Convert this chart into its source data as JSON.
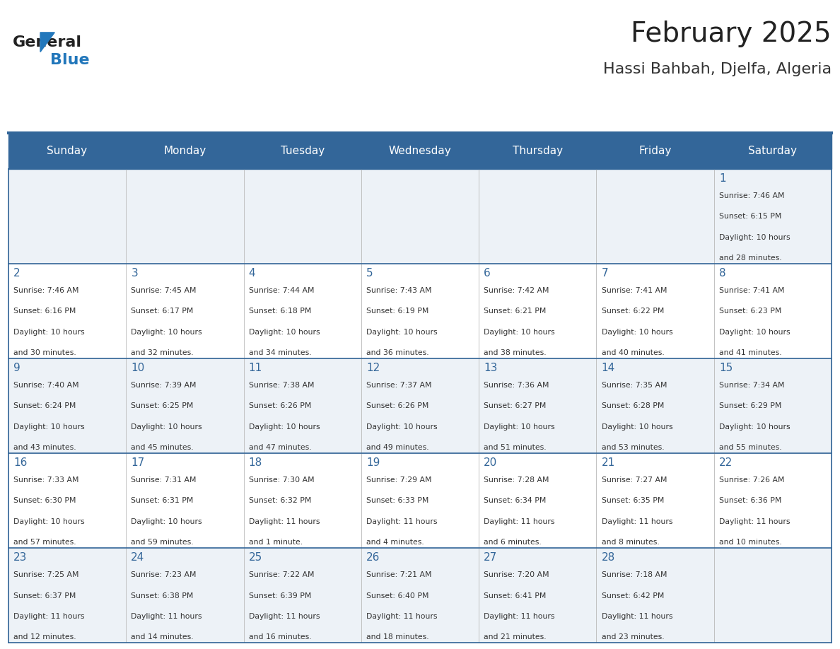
{
  "title": "February 2025",
  "subtitle": "Hassi Bahbah, Djelfa, Algeria",
  "days_of_week": [
    "Sunday",
    "Monday",
    "Tuesday",
    "Wednesday",
    "Thursday",
    "Friday",
    "Saturday"
  ],
  "header_bg": "#336699",
  "header_text_color": "#ffffff",
  "cell_bg_light": "#edf2f7",
  "cell_bg_white": "#ffffff",
  "border_color": "#336699",
  "text_color": "#333333",
  "day_num_color": "#336699",
  "calendar_data": [
    [
      null,
      null,
      null,
      null,
      null,
      null,
      {
        "day": 1,
        "sunrise": "7:46 AM",
        "sunset": "6:15 PM",
        "daylight": "10 hours\nand 28 minutes."
      }
    ],
    [
      {
        "day": 2,
        "sunrise": "7:46 AM",
        "sunset": "6:16 PM",
        "daylight": "10 hours\nand 30 minutes."
      },
      {
        "day": 3,
        "sunrise": "7:45 AM",
        "sunset": "6:17 PM",
        "daylight": "10 hours\nand 32 minutes."
      },
      {
        "day": 4,
        "sunrise": "7:44 AM",
        "sunset": "6:18 PM",
        "daylight": "10 hours\nand 34 minutes."
      },
      {
        "day": 5,
        "sunrise": "7:43 AM",
        "sunset": "6:19 PM",
        "daylight": "10 hours\nand 36 minutes."
      },
      {
        "day": 6,
        "sunrise": "7:42 AM",
        "sunset": "6:21 PM",
        "daylight": "10 hours\nand 38 minutes."
      },
      {
        "day": 7,
        "sunrise": "7:41 AM",
        "sunset": "6:22 PM",
        "daylight": "10 hours\nand 40 minutes."
      },
      {
        "day": 8,
        "sunrise": "7:41 AM",
        "sunset": "6:23 PM",
        "daylight": "10 hours\nand 41 minutes."
      }
    ],
    [
      {
        "day": 9,
        "sunrise": "7:40 AM",
        "sunset": "6:24 PM",
        "daylight": "10 hours\nand 43 minutes."
      },
      {
        "day": 10,
        "sunrise": "7:39 AM",
        "sunset": "6:25 PM",
        "daylight": "10 hours\nand 45 minutes."
      },
      {
        "day": 11,
        "sunrise": "7:38 AM",
        "sunset": "6:26 PM",
        "daylight": "10 hours\nand 47 minutes."
      },
      {
        "day": 12,
        "sunrise": "7:37 AM",
        "sunset": "6:26 PM",
        "daylight": "10 hours\nand 49 minutes."
      },
      {
        "day": 13,
        "sunrise": "7:36 AM",
        "sunset": "6:27 PM",
        "daylight": "10 hours\nand 51 minutes."
      },
      {
        "day": 14,
        "sunrise": "7:35 AM",
        "sunset": "6:28 PM",
        "daylight": "10 hours\nand 53 minutes."
      },
      {
        "day": 15,
        "sunrise": "7:34 AM",
        "sunset": "6:29 PM",
        "daylight": "10 hours\nand 55 minutes."
      }
    ],
    [
      {
        "day": 16,
        "sunrise": "7:33 AM",
        "sunset": "6:30 PM",
        "daylight": "10 hours\nand 57 minutes."
      },
      {
        "day": 17,
        "sunrise": "7:31 AM",
        "sunset": "6:31 PM",
        "daylight": "10 hours\nand 59 minutes."
      },
      {
        "day": 18,
        "sunrise": "7:30 AM",
        "sunset": "6:32 PM",
        "daylight": "11 hours\nand 1 minute."
      },
      {
        "day": 19,
        "sunrise": "7:29 AM",
        "sunset": "6:33 PM",
        "daylight": "11 hours\nand 4 minutes."
      },
      {
        "day": 20,
        "sunrise": "7:28 AM",
        "sunset": "6:34 PM",
        "daylight": "11 hours\nand 6 minutes."
      },
      {
        "day": 21,
        "sunrise": "7:27 AM",
        "sunset": "6:35 PM",
        "daylight": "11 hours\nand 8 minutes."
      },
      {
        "day": 22,
        "sunrise": "7:26 AM",
        "sunset": "6:36 PM",
        "daylight": "11 hours\nand 10 minutes."
      }
    ],
    [
      {
        "day": 23,
        "sunrise": "7:25 AM",
        "sunset": "6:37 PM",
        "daylight": "11 hours\nand 12 minutes."
      },
      {
        "day": 24,
        "sunrise": "7:23 AM",
        "sunset": "6:38 PM",
        "daylight": "11 hours\nand 14 minutes."
      },
      {
        "day": 25,
        "sunrise": "7:22 AM",
        "sunset": "6:39 PM",
        "daylight": "11 hours\nand 16 minutes."
      },
      {
        "day": 26,
        "sunrise": "7:21 AM",
        "sunset": "6:40 PM",
        "daylight": "11 hours\nand 18 minutes."
      },
      {
        "day": 27,
        "sunrise": "7:20 AM",
        "sunset": "6:41 PM",
        "daylight": "11 hours\nand 21 minutes."
      },
      {
        "day": 28,
        "sunrise": "7:18 AM",
        "sunset": "6:42 PM",
        "daylight": "11 hours\nand 23 minutes."
      },
      null
    ]
  ],
  "logo_text_general": "General",
  "logo_text_blue": "Blue",
  "logo_blue": "#2277bb"
}
